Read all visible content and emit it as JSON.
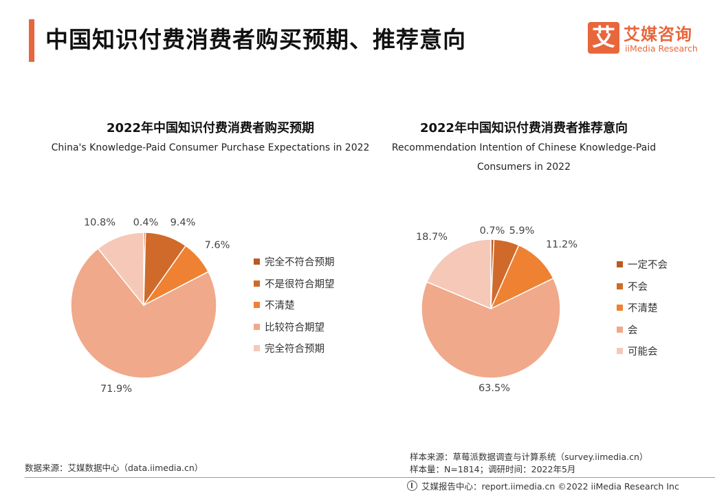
{
  "header": {
    "title": "中国知识付费消费者购买预期、推荐意向",
    "accent_color": "#e8663b"
  },
  "logo": {
    "mark": "艾",
    "cn": "艾媒咨询",
    "en": "iiMedia Research"
  },
  "chart_data": [
    {
      "type": "pie",
      "title": "2022年中国知识付费消费者购买预期",
      "subtitle": "China's Knowledge-Paid Consumer Purchase Expectations in 2022",
      "legend_position": "right",
      "categories": [
        "完全不符合预期",
        "不是很符合期望",
        "不清楚",
        "比较符合期望",
        "完全符合预期"
      ],
      "values": [
        0.4,
        9.4,
        7.6,
        71.9,
        10.8
      ],
      "labels": [
        "0.4%",
        "9.4%",
        "7.6%",
        "71.9%",
        "10.8%"
      ],
      "colors": [
        "#b85a22",
        "#d06a2a",
        "#ef8132",
        "#f0a98a",
        "#f5c8b8"
      ]
    },
    {
      "type": "pie",
      "title": "2022年中国知识付费消费者推荐意向",
      "subtitle": "Recommendation Intention of Chinese Knowledge-Paid Consumers in 2022",
      "legend_position": "right",
      "categories": [
        "一定不会",
        "不会",
        "不清楚",
        "会",
        "可能会"
      ],
      "values": [
        0.7,
        5.9,
        11.2,
        63.5,
        18.7
      ],
      "labels": [
        "0.7%",
        "5.9%",
        "11.2%",
        "63.5%",
        "18.7%"
      ],
      "colors": [
        "#b85a22",
        "#d06a2a",
        "#ef8132",
        "#f0a98a",
        "#f5c8b8"
      ]
    }
  ],
  "sources": {
    "left": "数据来源：艾媒数据中心（data.iimedia.cn）",
    "right_line1": "样本来源：草莓派数据调查与计算系统（survey.iimedia.cn）",
    "right_line2": "样本量：N=1814；调研时间：2022年5月"
  },
  "footer": {
    "text": "艾媒报告中心：report.iimedia.cn   ©2022  iiMedia Research  Inc"
  }
}
